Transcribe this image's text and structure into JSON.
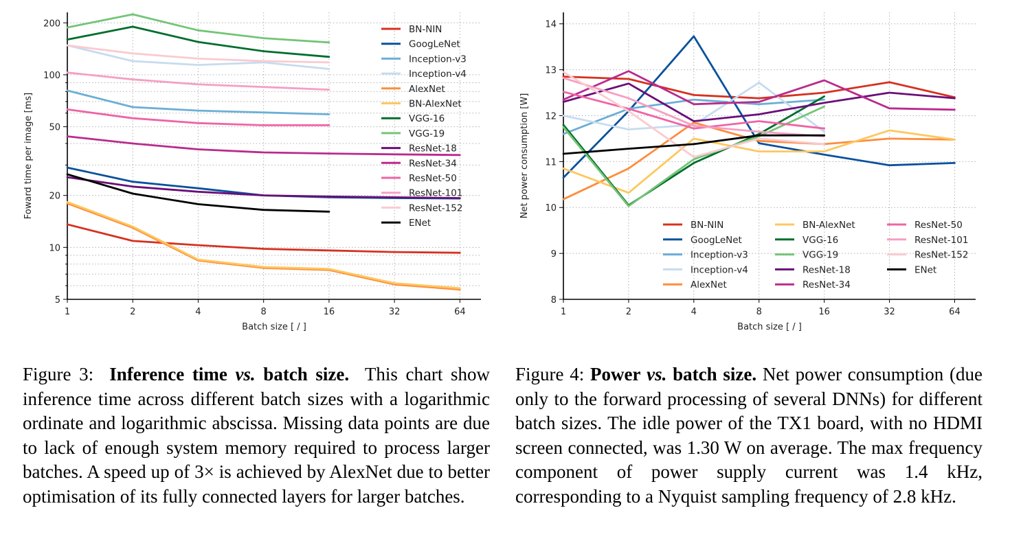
{
  "chart_data": [
    {
      "type": "line",
      "title": "",
      "xlabel": "Batch size [ / ]",
      "ylabel": "Foward time per image [ms]",
      "x_scale": "log2",
      "y_scale": "log",
      "x_ticks": [
        1,
        2,
        4,
        8,
        16,
        32,
        64
      ],
      "y_ticks": [
        5,
        10,
        20,
        50,
        100,
        200
      ],
      "xlim": [
        1,
        80
      ],
      "ylim": [
        5,
        230
      ],
      "grid": true,
      "legend_position": "top-right",
      "series": [
        {
          "name": "BN-NIN",
          "color": "#d7301f",
          "x": [
            1,
            2,
            4,
            8,
            16,
            32,
            64
          ],
          "y": [
            13.6,
            10.9,
            10.3,
            9.8,
            9.6,
            9.4,
            9.3
          ]
        },
        {
          "name": "GoogLeNet",
          "color": "#08519c",
          "x": [
            1,
            2,
            4,
            8,
            16,
            32,
            64
          ],
          "y": [
            29,
            24,
            22,
            20,
            19.5,
            19.3,
            19.2
          ]
        },
        {
          "name": "Inception-v3",
          "color": "#6baed6",
          "x": [
            1,
            2,
            4,
            8,
            16
          ],
          "y": [
            81,
            65,
            62,
            60.5,
            59
          ]
        },
        {
          "name": "Inception-v4",
          "color": "#c6dbef",
          "x": [
            1,
            2,
            4,
            8,
            16
          ],
          "y": [
            148,
            120,
            114,
            118,
            108
          ]
        },
        {
          "name": "AlexNet",
          "color": "#fd8d3c",
          "x": [
            1,
            2,
            4,
            8,
            16,
            32,
            64
          ],
          "y": [
            18,
            13,
            8.4,
            7.6,
            7.4,
            6.1,
            5.7
          ]
        },
        {
          "name": "BN-AlexNet",
          "color": "#fdc75f",
          "x": [
            1,
            2,
            4,
            8,
            16,
            32,
            64
          ],
          "y": [
            18.3,
            13.2,
            8.5,
            7.7,
            7.5,
            6.2,
            5.8
          ]
        },
        {
          "name": "VGG-16",
          "color": "#006d2c",
          "x": [
            1,
            2,
            4,
            8,
            16
          ],
          "y": [
            160,
            190,
            155,
            137,
            127
          ]
        },
        {
          "name": "VGG-19",
          "color": "#74c476",
          "x": [
            1,
            2,
            4,
            8,
            16
          ],
          "y": [
            188,
            224,
            181,
            163,
            154
          ]
        },
        {
          "name": "ResNet-18",
          "color": "#6a0f78",
          "x": [
            1,
            2,
            4,
            8,
            16,
            32,
            64
          ],
          "y": [
            25.5,
            22.5,
            21,
            20,
            19.7,
            19.5,
            19.3
          ]
        },
        {
          "name": "ResNet-34",
          "color": "#ba2a8c",
          "x": [
            1,
            2,
            4,
            8,
            16,
            32,
            64
          ],
          "y": [
            44,
            40,
            37,
            35.5,
            35,
            34.6,
            34.3
          ]
        },
        {
          "name": "ResNet-50",
          "color": "#f063a5",
          "x": [
            1,
            2,
            4,
            8,
            16
          ],
          "y": [
            63,
            56,
            52.5,
            51,
            51
          ]
        },
        {
          "name": "ResNet-101",
          "color": "#f59fc2",
          "x": [
            1,
            2,
            4,
            8,
            16
          ],
          "y": [
            103,
            94,
            88,
            85,
            82
          ]
        },
        {
          "name": "ResNet-152",
          "color": "#f9cbd0",
          "x": [
            1,
            2,
            4,
            8,
            16
          ],
          "y": [
            148,
            133,
            124,
            120,
            118
          ]
        },
        {
          "name": "ENet",
          "color": "#000000",
          "x": [
            1,
            2,
            4,
            8,
            16
          ],
          "y": [
            26.5,
            20.5,
            17.8,
            16.5,
            16.1
          ]
        }
      ]
    },
    {
      "type": "line",
      "title": "",
      "xlabel": "Batch size [ / ]",
      "ylabel": "Net power consumption [W]",
      "x_scale": "log2",
      "y_scale": "linear",
      "x_ticks": [
        1,
        2,
        4,
        8,
        16,
        32,
        64
      ],
      "y_ticks": [
        8,
        9,
        10,
        11,
        12,
        13,
        14
      ],
      "xlim": [
        1,
        80
      ],
      "ylim": [
        8,
        14.25
      ],
      "grid": true,
      "legend_position": "bottom-center",
      "series": [
        {
          "name": "BN-NIN",
          "color": "#d7301f",
          "x": [
            1,
            2,
            4,
            8,
            16,
            32,
            64
          ],
          "y": [
            12.85,
            12.8,
            12.45,
            12.38,
            12.5,
            12.73,
            12.4
          ]
        },
        {
          "name": "GoogLeNet",
          "color": "#08519c",
          "x": [
            1,
            2,
            4,
            8,
            16,
            32,
            64
          ],
          "y": [
            10.65,
            12.1,
            13.73,
            11.4,
            11.15,
            10.92,
            10.97
          ]
        },
        {
          "name": "Inception-v3",
          "color": "#6baed6",
          "x": [
            1,
            2,
            4,
            8,
            16
          ],
          "y": [
            11.6,
            12.15,
            12.35,
            12.25,
            12.35
          ]
        },
        {
          "name": "Inception-v4",
          "color": "#c6dbef",
          "x": [
            1,
            2,
            4,
            8,
            16
          ],
          "y": [
            12.0,
            11.7,
            11.8,
            12.72,
            11.65
          ]
        },
        {
          "name": "AlexNet",
          "color": "#fd8d3c",
          "x": [
            1,
            2,
            4,
            8,
            16,
            32,
            64
          ],
          "y": [
            10.18,
            10.85,
            11.85,
            11.45,
            11.38,
            11.5,
            11.48
          ]
        },
        {
          "name": "BN-AlexNet",
          "color": "#fdc75f",
          "x": [
            1,
            2,
            4,
            8,
            16,
            32,
            64
          ],
          "y": [
            10.85,
            10.32,
            11.5,
            11.22,
            11.22,
            11.68,
            11.48
          ]
        },
        {
          "name": "VGG-16",
          "color": "#006d2c",
          "x": [
            1,
            2,
            4,
            8,
            16
          ],
          "y": [
            11.8,
            10.05,
            10.97,
            11.6,
            12.42
          ]
        },
        {
          "name": "VGG-19",
          "color": "#74c476",
          "x": [
            1,
            2,
            4,
            8,
            16
          ],
          "y": [
            11.75,
            10.03,
            11.05,
            11.55,
            12.2
          ]
        },
        {
          "name": "ResNet-18",
          "color": "#6a0f78",
          "x": [
            1,
            2,
            4,
            8,
            16,
            32,
            64
          ],
          "y": [
            12.3,
            12.7,
            11.88,
            12.03,
            12.28,
            12.5,
            12.38
          ]
        },
        {
          "name": "ResNet-34",
          "color": "#ba2a8c",
          "x": [
            1,
            2,
            4,
            8,
            16,
            32,
            64
          ],
          "y": [
            12.35,
            12.97,
            12.25,
            12.3,
            12.77,
            12.16,
            12.13
          ]
        },
        {
          "name": "ResNet-50",
          "color": "#f063a5",
          "x": [
            1,
            2,
            4,
            8,
            16
          ],
          "y": [
            12.52,
            12.15,
            11.72,
            11.88,
            11.72
          ]
        },
        {
          "name": "ResNet-101",
          "color": "#f59fc2",
          "x": [
            1,
            2,
            4,
            8,
            16
          ],
          "y": [
            12.82,
            12.38,
            11.78,
            11.65,
            11.55
          ]
        },
        {
          "name": "ResNet-152",
          "color": "#f9cbd0",
          "x": [
            1,
            2,
            4,
            8,
            16
          ],
          "y": [
            12.95,
            12.1,
            11.1,
            11.5,
            11.38
          ]
        },
        {
          "name": "ENet",
          "color": "#000000",
          "x": [
            1,
            2,
            4,
            8,
            16
          ],
          "y": [
            11.17,
            11.28,
            11.38,
            11.57,
            11.57
          ]
        }
      ]
    }
  ],
  "captions": {
    "figure3": {
      "label": "Figure 3:",
      "title_part1": "Inference time",
      "title_vs": "vs.",
      "title_part2": "batch size.",
      "body": "This chart show inference time across different batch sizes with a logarithmic ordinate and logarithmic abscissa. Missing data points are due to lack of enough system memory required to process larger batches. A speed up of 3× is achieved by AlexNet due to better optimisation of its fully connected layers for larger batches."
    },
    "figure4": {
      "label": "Figure 4:",
      "title_part1": "Power",
      "title_vs": "vs.",
      "title_part2": "batch size.",
      "body": "Net power consumption (due only to the forward processing of several DNNs) for different batch sizes. The idle power of the TX1 board, with no HDMI screen connected, was 1.30 W on average. The max frequency component of power supply current was 1.4 kHz, corresponding to a Nyquist sampling frequency of 2.8 kHz."
    }
  }
}
